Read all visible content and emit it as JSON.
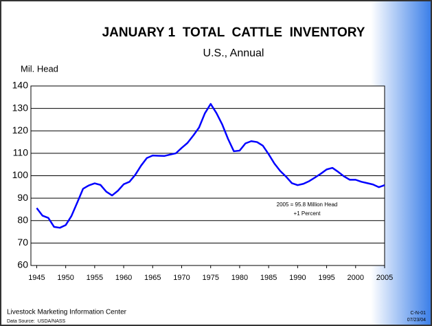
{
  "chart_data": {
    "type": "line",
    "title": "JANUARY 1  TOTAL  CATTLE  INVENTORY",
    "subtitle": "U.S., Annual",
    "y_label": "Mil. Head",
    "annotation": [
      "2005 = 95.8 Million Head",
      "+1 Percent"
    ],
    "footer": "Livestock Marketing Information Center",
    "source": "Data Source:  USDA/NASS",
    "code": "C-N-01",
    "date": "07/23/04",
    "x": [
      1945,
      1946,
      1947,
      1948,
      1949,
      1950,
      1951,
      1952,
      1953,
      1954,
      1955,
      1956,
      1957,
      1958,
      1959,
      1960,
      1961,
      1962,
      1963,
      1964,
      1965,
      1966,
      1967,
      1968,
      1969,
      1970,
      1971,
      1972,
      1973,
      1974,
      1975,
      1976,
      1977,
      1978,
      1979,
      1980,
      1981,
      1982,
      1983,
      1984,
      1985,
      1986,
      1987,
      1988,
      1989,
      1990,
      1991,
      1992,
      1993,
      1994,
      1995,
      1996,
      1997,
      1998,
      1999,
      2000,
      2001,
      2002,
      2003,
      2004,
      2005
    ],
    "series": [
      {
        "name": "Cattle inventory",
        "color": "#0000ff",
        "values": [
          85.6,
          82.2,
          81.2,
          77.2,
          76.8,
          78,
          82.1,
          88.1,
          94.2,
          95.7,
          96.6,
          95.9,
          92.9,
          91.2,
          93.3,
          96.2,
          97.3,
          100.4,
          104.5,
          107.9,
          109,
          108.9,
          108.8,
          109.4,
          110,
          112.4,
          114.6,
          117.9,
          121.5,
          127.8,
          132,
          127.9,
          122.8,
          116.4,
          110.9,
          111.2,
          114.4,
          115.4,
          115,
          113.4,
          109.6,
          105.4,
          102.1,
          99.6,
          96.7,
          95.8,
          96.4,
          97.6,
          99.2,
          100.9,
          102.8,
          103.5,
          101.7,
          99.7,
          98.2,
          98.2,
          97.3,
          96.7,
          96.1,
          94.9,
          95.8
        ]
      }
    ],
    "xlim": [
      1944,
      2005
    ],
    "xticks": [
      1945,
      1950,
      1955,
      1960,
      1965,
      1970,
      1975,
      1980,
      1985,
      1990,
      1995,
      2000,
      2005
    ],
    "ylim": [
      60,
      140
    ],
    "yticks": [
      60,
      70,
      80,
      90,
      100,
      110,
      120,
      130,
      140
    ],
    "grid": true
  }
}
